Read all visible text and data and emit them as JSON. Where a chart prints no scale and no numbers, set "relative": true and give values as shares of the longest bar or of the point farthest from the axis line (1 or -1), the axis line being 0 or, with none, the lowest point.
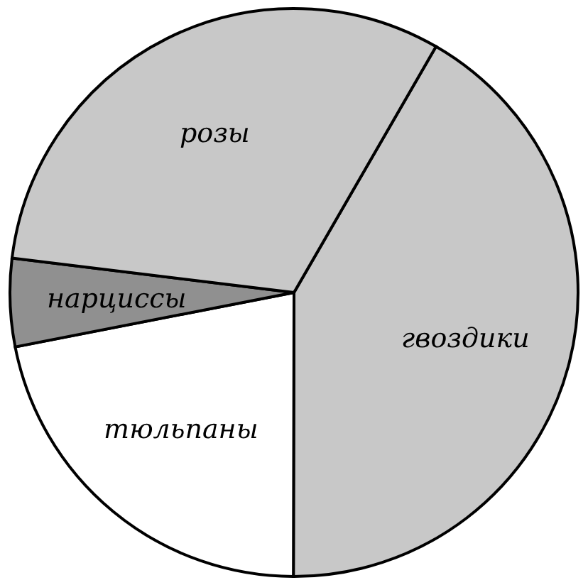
{
  "chart_data": {
    "type": "pie",
    "relative": true,
    "categories": [
      "гвоздики",
      "тюльпаны",
      "нарциссы",
      "розы"
    ],
    "values": [
      41.7,
      21.9,
      5,
      31.4
    ],
    "colors": [
      "#c8c8c8",
      "#ffffff",
      "#909090",
      "#c8c8c8"
    ]
  }
}
